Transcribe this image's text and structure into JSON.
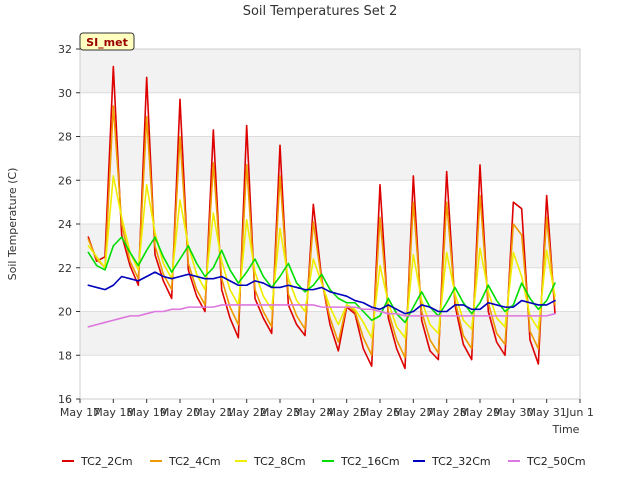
{
  "chart_data": {
    "type": "line",
    "title": "Soil Temperatures Set 2",
    "xlabel": "Time",
    "ylabel": "Soil Temperature (C)",
    "ylim": [
      16,
      32
    ],
    "yticks": [
      16,
      18,
      20,
      22,
      24,
      26,
      28,
      30,
      32
    ],
    "xlim": [
      "2013-05-17",
      "2013-06-01"
    ],
    "xtick_labels": [
      "May 17",
      "May 18",
      "May 19",
      "May 20",
      "May 21",
      "May 22",
      "May 23",
      "May 24",
      "May 25",
      "May 26",
      "May 27",
      "May 28",
      "May 29",
      "May 30",
      "May 31",
      "Jun 1"
    ],
    "grid": true,
    "background_bands": true,
    "annotation": "SI_met",
    "legend": {
      "placement": "bottom"
    },
    "x_start": "2013-05-17",
    "x_step_hours": 6,
    "series": [
      {
        "name": "TC2_2Cm",
        "color": "#dd0000",
        "values": [
          23.4,
          22.3,
          22.5,
          31.2,
          23.5,
          22.1,
          21.2,
          30.7,
          22.6,
          21.4,
          20.6,
          29.7,
          21.9,
          20.7,
          20.0,
          28.3,
          21.0,
          19.7,
          18.8,
          28.5,
          20.6,
          19.7,
          19.0,
          27.6,
          20.3,
          19.4,
          18.9,
          24.9,
          21.5,
          19.4,
          18.2,
          20.2,
          19.9,
          18.3,
          17.5,
          25.8,
          19.7,
          18.3,
          17.4,
          26.2,
          19.6,
          18.2,
          17.8,
          26.4,
          20.3,
          18.5,
          17.8,
          26.7,
          20.0,
          18.6,
          18.0,
          25.0,
          24.7,
          18.7,
          17.6,
          25.3,
          19.9
        ]
      },
      {
        "name": "TC2_4Cm",
        "color": "#ee9900",
        "values": [
          23.3,
          22.4,
          22.0,
          29.4,
          24.0,
          22.3,
          21.5,
          28.9,
          23.0,
          21.7,
          21.0,
          28.0,
          22.2,
          21.0,
          20.3,
          26.8,
          21.5,
          20.2,
          19.4,
          26.7,
          21.0,
          20.0,
          19.3,
          26.2,
          20.8,
          19.8,
          19.2,
          24.1,
          21.4,
          19.7,
          18.6,
          20.3,
          20.0,
          18.8,
          18.0,
          24.3,
          20.0,
          18.7,
          17.9,
          25.0,
          20.0,
          18.7,
          18.1,
          25.0,
          20.5,
          18.9,
          18.3,
          25.3,
          20.4,
          19.0,
          18.5,
          24.0,
          23.5,
          19.1,
          18.3,
          24.3,
          20.3
        ]
      },
      {
        "name": "TC2_8Cm",
        "color": "#eeee00",
        "values": [
          23.0,
          22.5,
          22.0,
          26.2,
          24.3,
          22.7,
          21.9,
          25.8,
          23.6,
          22.2,
          21.5,
          25.1,
          23.0,
          21.7,
          21.0,
          24.5,
          22.3,
          21.0,
          20.3,
          24.2,
          21.8,
          20.7,
          20.1,
          23.8,
          21.5,
          20.5,
          20.0,
          22.4,
          21.3,
          20.2,
          19.4,
          20.3,
          20.1,
          19.5,
          18.8,
          22.1,
          20.4,
          19.3,
          18.8,
          22.6,
          20.5,
          19.4,
          19.0,
          22.7,
          20.8,
          19.6,
          19.2,
          22.9,
          20.9,
          19.7,
          19.3,
          22.7,
          21.6,
          19.8,
          19.2,
          22.8,
          20.7
        ]
      },
      {
        "name": "TC2_16Cm",
        "color": "#00dd00",
        "values": [
          22.7,
          22.1,
          21.9,
          23.0,
          23.4,
          22.7,
          22.1,
          22.8,
          23.4,
          22.5,
          21.8,
          22.4,
          23.0,
          22.2,
          21.6,
          22.0,
          22.8,
          21.9,
          21.3,
          21.8,
          22.4,
          21.6,
          21.1,
          21.6,
          22.2,
          21.3,
          20.9,
          21.2,
          21.7,
          21.0,
          20.6,
          20.4,
          20.4,
          20.0,
          19.6,
          19.8,
          20.6,
          19.9,
          19.5,
          20.2,
          20.9,
          20.2,
          19.8,
          20.4,
          21.1,
          20.4,
          19.9,
          20.4,
          21.2,
          20.5,
          20.0,
          20.3,
          21.3,
          20.6,
          20.1,
          20.5,
          21.3
        ]
      },
      {
        "name": "TC2_32Cm",
        "color": "#0000bb",
        "values": [
          21.2,
          21.1,
          21.0,
          21.2,
          21.6,
          21.5,
          21.4,
          21.6,
          21.8,
          21.6,
          21.5,
          21.6,
          21.7,
          21.6,
          21.5,
          21.5,
          21.6,
          21.4,
          21.2,
          21.2,
          21.4,
          21.3,
          21.1,
          21.1,
          21.2,
          21.1,
          21.0,
          21.0,
          21.1,
          20.9,
          20.8,
          20.7,
          20.5,
          20.4,
          20.2,
          20.1,
          20.3,
          20.1,
          19.9,
          20.0,
          20.3,
          20.2,
          20.0,
          20.0,
          20.3,
          20.3,
          20.1,
          20.1,
          20.4,
          20.3,
          20.2,
          20.2,
          20.5,
          20.4,
          20.3,
          20.3,
          20.5
        ]
      },
      {
        "name": "TC2_50Cm",
        "color": "#dd77dd",
        "values": [
          19.3,
          19.4,
          19.5,
          19.6,
          19.7,
          19.8,
          19.8,
          19.9,
          20.0,
          20.0,
          20.1,
          20.1,
          20.2,
          20.2,
          20.2,
          20.2,
          20.3,
          20.3,
          20.3,
          20.3,
          20.3,
          20.3,
          20.3,
          20.3,
          20.3,
          20.3,
          20.3,
          20.3,
          20.2,
          20.2,
          20.2,
          20.2,
          20.2,
          20.1,
          20.1,
          20.0,
          19.9,
          19.9,
          19.8,
          19.8,
          19.8,
          19.8,
          19.8,
          19.8,
          19.8,
          19.8,
          19.8,
          19.8,
          19.8,
          19.8,
          19.8,
          19.8,
          19.8,
          19.8,
          19.8,
          19.8,
          19.9
        ]
      }
    ]
  }
}
